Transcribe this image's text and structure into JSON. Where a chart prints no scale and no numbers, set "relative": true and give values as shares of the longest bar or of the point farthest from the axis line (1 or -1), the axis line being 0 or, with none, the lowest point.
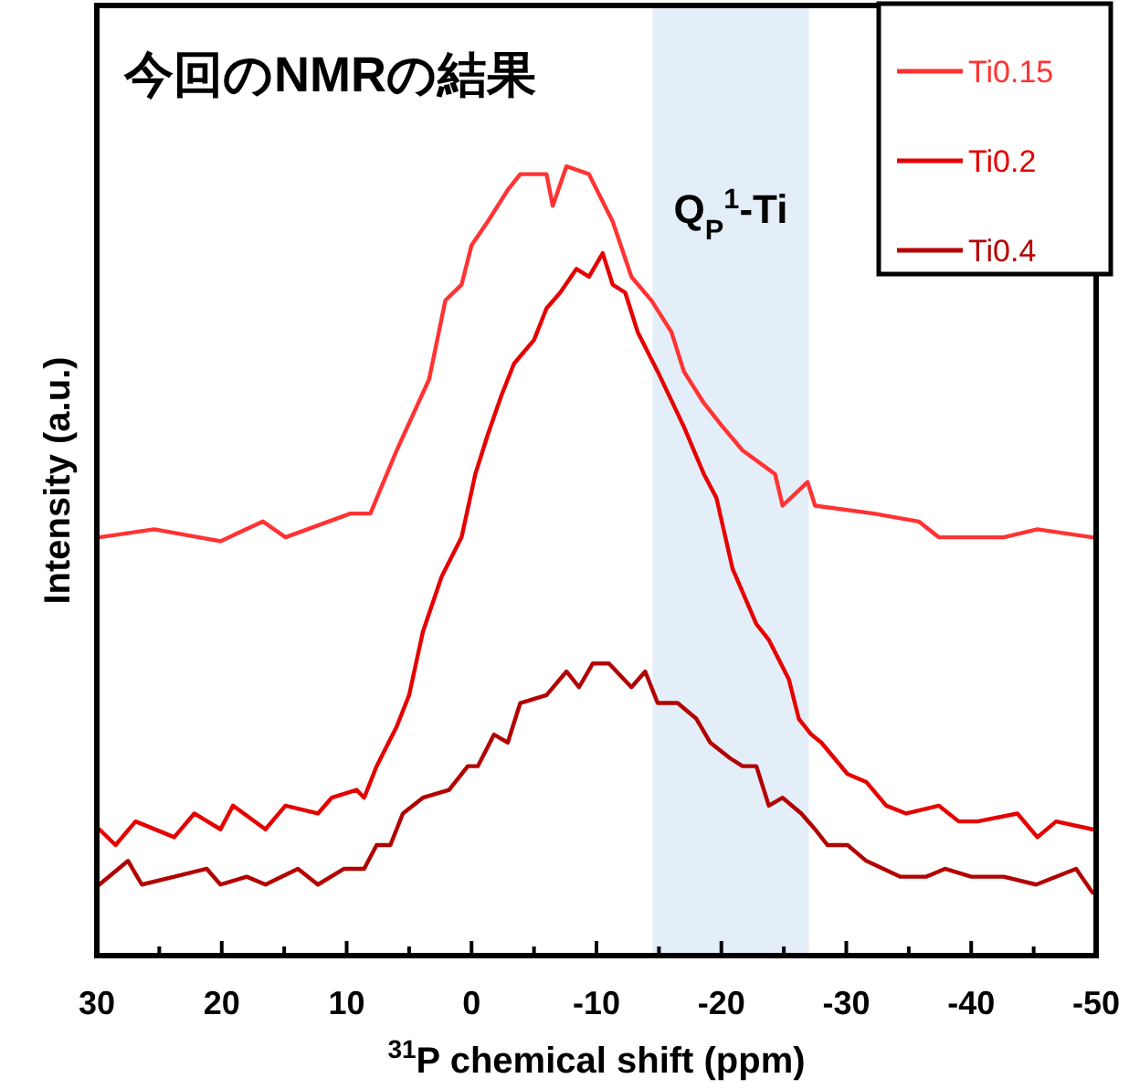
{
  "chart_data": {
    "type": "line",
    "title": "今回のNMRの結果",
    "xlabel": "$^{31}$P chemical shift  (ppm)",
    "ylabel": "Intensity (a.u.)",
    "relative": true,
    "legend": "top right",
    "xlim": [
      30,
      -50
    ],
    "xticks": [
      30,
      20,
      10,
      0,
      -10,
      -20,
      -30,
      -40,
      -50
    ],
    "bands": [
      {
        "axis": "x",
        "from": -14.5,
        "to": -27,
        "label": "Q$_{P}$$^{1}$-Ti",
        "color": "#e4eef8"
      }
    ],
    "series": [
      {
        "name": "Ti0.15",
        "color": "#ff3333",
        "x": [
          29.8,
          25.4,
          20.1,
          16.7,
          14.9,
          9.7,
          8.1,
          6.0,
          3.4,
          2.1,
          0.8,
          0.0,
          -1.3,
          -2.9,
          -3.9,
          -6.0,
          -6.5,
          -7.6,
          -9.4,
          -11.3,
          -12.8,
          -14.4,
          -16.0,
          -17.0,
          -18.6,
          -20.1,
          -21.7,
          -24.3,
          -24.9,
          -26.9,
          -27.5,
          -32.2,
          -35.8,
          -37.4,
          -42.6,
          -45.3,
          -49.7
        ],
        "values": [
          0.53,
          0.54,
          0.525,
          0.55,
          0.53,
          0.56,
          0.56,
          0.64,
          0.73,
          0.83,
          0.85,
          0.9,
          0.93,
          0.97,
          0.99,
          0.99,
          0.95,
          1.0,
          0.99,
          0.93,
          0.86,
          0.83,
          0.79,
          0.74,
          0.7,
          0.67,
          0.64,
          0.61,
          0.57,
          0.6,
          0.57,
          0.56,
          0.55,
          0.53,
          0.53,
          0.54,
          0.53
        ]
      },
      {
        "name": "Ti0.2",
        "color": "#e60000",
        "x": [
          29.8,
          28.5,
          26.9,
          23.8,
          22.2,
          20.1,
          19.1,
          16.5,
          14.9,
          12.3,
          11.2,
          9.2,
          8.6,
          7.6,
          6.0,
          5.0,
          3.9,
          2.4,
          0.8,
          -0.3,
          -1.3,
          -2.4,
          -3.4,
          -5.0,
          -6.0,
          -7.1,
          -8.4,
          -9.4,
          -10.5,
          -11.3,
          -12.3,
          -13.3,
          -14.9,
          -17.0,
          -18.6,
          -19.6,
          -20.9,
          -22.8,
          -23.8,
          -25.4,
          -26.2,
          -27.2,
          -28.0,
          -30.1,
          -31.6,
          -33.2,
          -34.8,
          -37.4,
          -39.0,
          -40.5,
          -43.7,
          -45.3,
          -46.8,
          -49.7
        ],
        "values": [
          0.16,
          0.14,
          0.17,
          0.15,
          0.18,
          0.16,
          0.19,
          0.16,
          0.19,
          0.18,
          0.2,
          0.21,
          0.2,
          0.24,
          0.29,
          0.33,
          0.41,
          0.48,
          0.53,
          0.61,
          0.66,
          0.71,
          0.75,
          0.78,
          0.82,
          0.84,
          0.87,
          0.86,
          0.89,
          0.85,
          0.84,
          0.79,
          0.74,
          0.67,
          0.61,
          0.58,
          0.49,
          0.42,
          0.4,
          0.35,
          0.3,
          0.28,
          0.27,
          0.23,
          0.22,
          0.19,
          0.18,
          0.19,
          0.17,
          0.17,
          0.18,
          0.15,
          0.17,
          0.16
        ]
      },
      {
        "name": "Ti0.4",
        "color": "#b30000",
        "x": [
          29.8,
          27.5,
          26.4,
          23.8,
          21.2,
          20.1,
          18.0,
          16.5,
          13.9,
          12.3,
          10.2,
          8.6,
          7.6,
          6.5,
          5.5,
          3.9,
          1.8,
          0.3,
          -0.5,
          -1.8,
          -2.9,
          -3.9,
          -6.0,
          -7.6,
          -8.6,
          -9.7,
          -11.0,
          -12.8,
          -13.9,
          -14.9,
          -16.5,
          -18.0,
          -19.1,
          -20.7,
          -21.7,
          -22.8,
          -23.8,
          -24.9,
          -26.4,
          -27.5,
          -28.5,
          -30.1,
          -31.6,
          -34.3,
          -36.4,
          -37.9,
          -40.0,
          -42.6,
          -45.2,
          -48.4,
          -49.7
        ],
        "values": [
          0.09,
          0.12,
          0.09,
          0.1,
          0.11,
          0.09,
          0.1,
          0.09,
          0.11,
          0.09,
          0.11,
          0.11,
          0.14,
          0.14,
          0.18,
          0.2,
          0.21,
          0.24,
          0.24,
          0.28,
          0.27,
          0.32,
          0.33,
          0.36,
          0.34,
          0.37,
          0.37,
          0.34,
          0.36,
          0.32,
          0.32,
          0.3,
          0.27,
          0.25,
          0.24,
          0.24,
          0.19,
          0.2,
          0.18,
          0.16,
          0.14,
          0.14,
          0.12,
          0.1,
          0.1,
          0.11,
          0.1,
          0.1,
          0.09,
          0.11,
          0.08
        ]
      }
    ]
  }
}
